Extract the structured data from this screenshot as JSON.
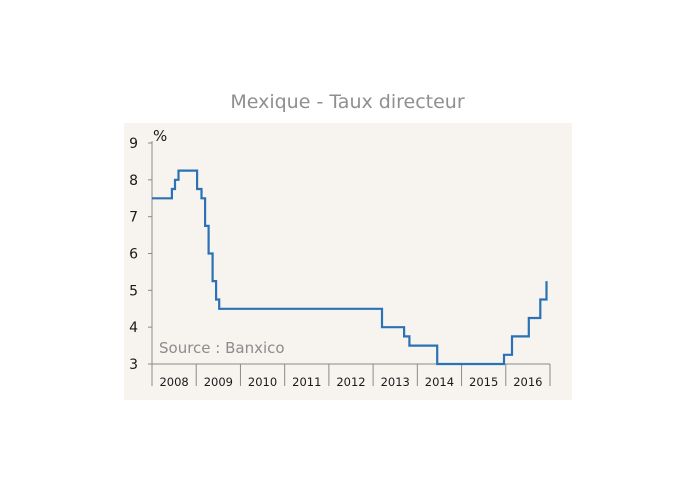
{
  "colors": {
    "plot_background": "#f7f4f0",
    "line": "#2a72b5",
    "axis": "#8a8a8a"
  },
  "chart_data": {
    "type": "line",
    "title": "Mexique - Taux directeur",
    "ylabel": "%",
    "annotation": "Source : Banxico",
    "x_categories": [
      "2008",
      "2009",
      "2010",
      "2011",
      "2012",
      "2013",
      "2014",
      "2015",
      "2016"
    ],
    "xlim": [
      2008.0,
      2017.0
    ],
    "ylim": [
      3,
      9
    ],
    "yticks": [
      3,
      4,
      5,
      6,
      7,
      8,
      9
    ],
    "grid": false,
    "series": [
      {
        "step": true,
        "points": [
          [
            2008.0,
            7.5
          ],
          [
            2008.45,
            7.75
          ],
          [
            2008.52,
            8.0
          ],
          [
            2008.6,
            8.25
          ],
          [
            2009.02,
            7.75
          ],
          [
            2009.12,
            7.5
          ],
          [
            2009.2,
            6.75
          ],
          [
            2009.28,
            6.0
          ],
          [
            2009.37,
            5.25
          ],
          [
            2009.45,
            4.75
          ],
          [
            2009.52,
            4.5
          ],
          [
            2013.2,
            4.0
          ],
          [
            2013.7,
            3.75
          ],
          [
            2013.82,
            3.5
          ],
          [
            2014.45,
            3.0
          ],
          [
            2015.96,
            3.25
          ],
          [
            2016.14,
            3.75
          ],
          [
            2016.52,
            4.25
          ],
          [
            2016.78,
            4.75
          ],
          [
            2016.92,
            5.25
          ]
        ]
      }
    ]
  }
}
